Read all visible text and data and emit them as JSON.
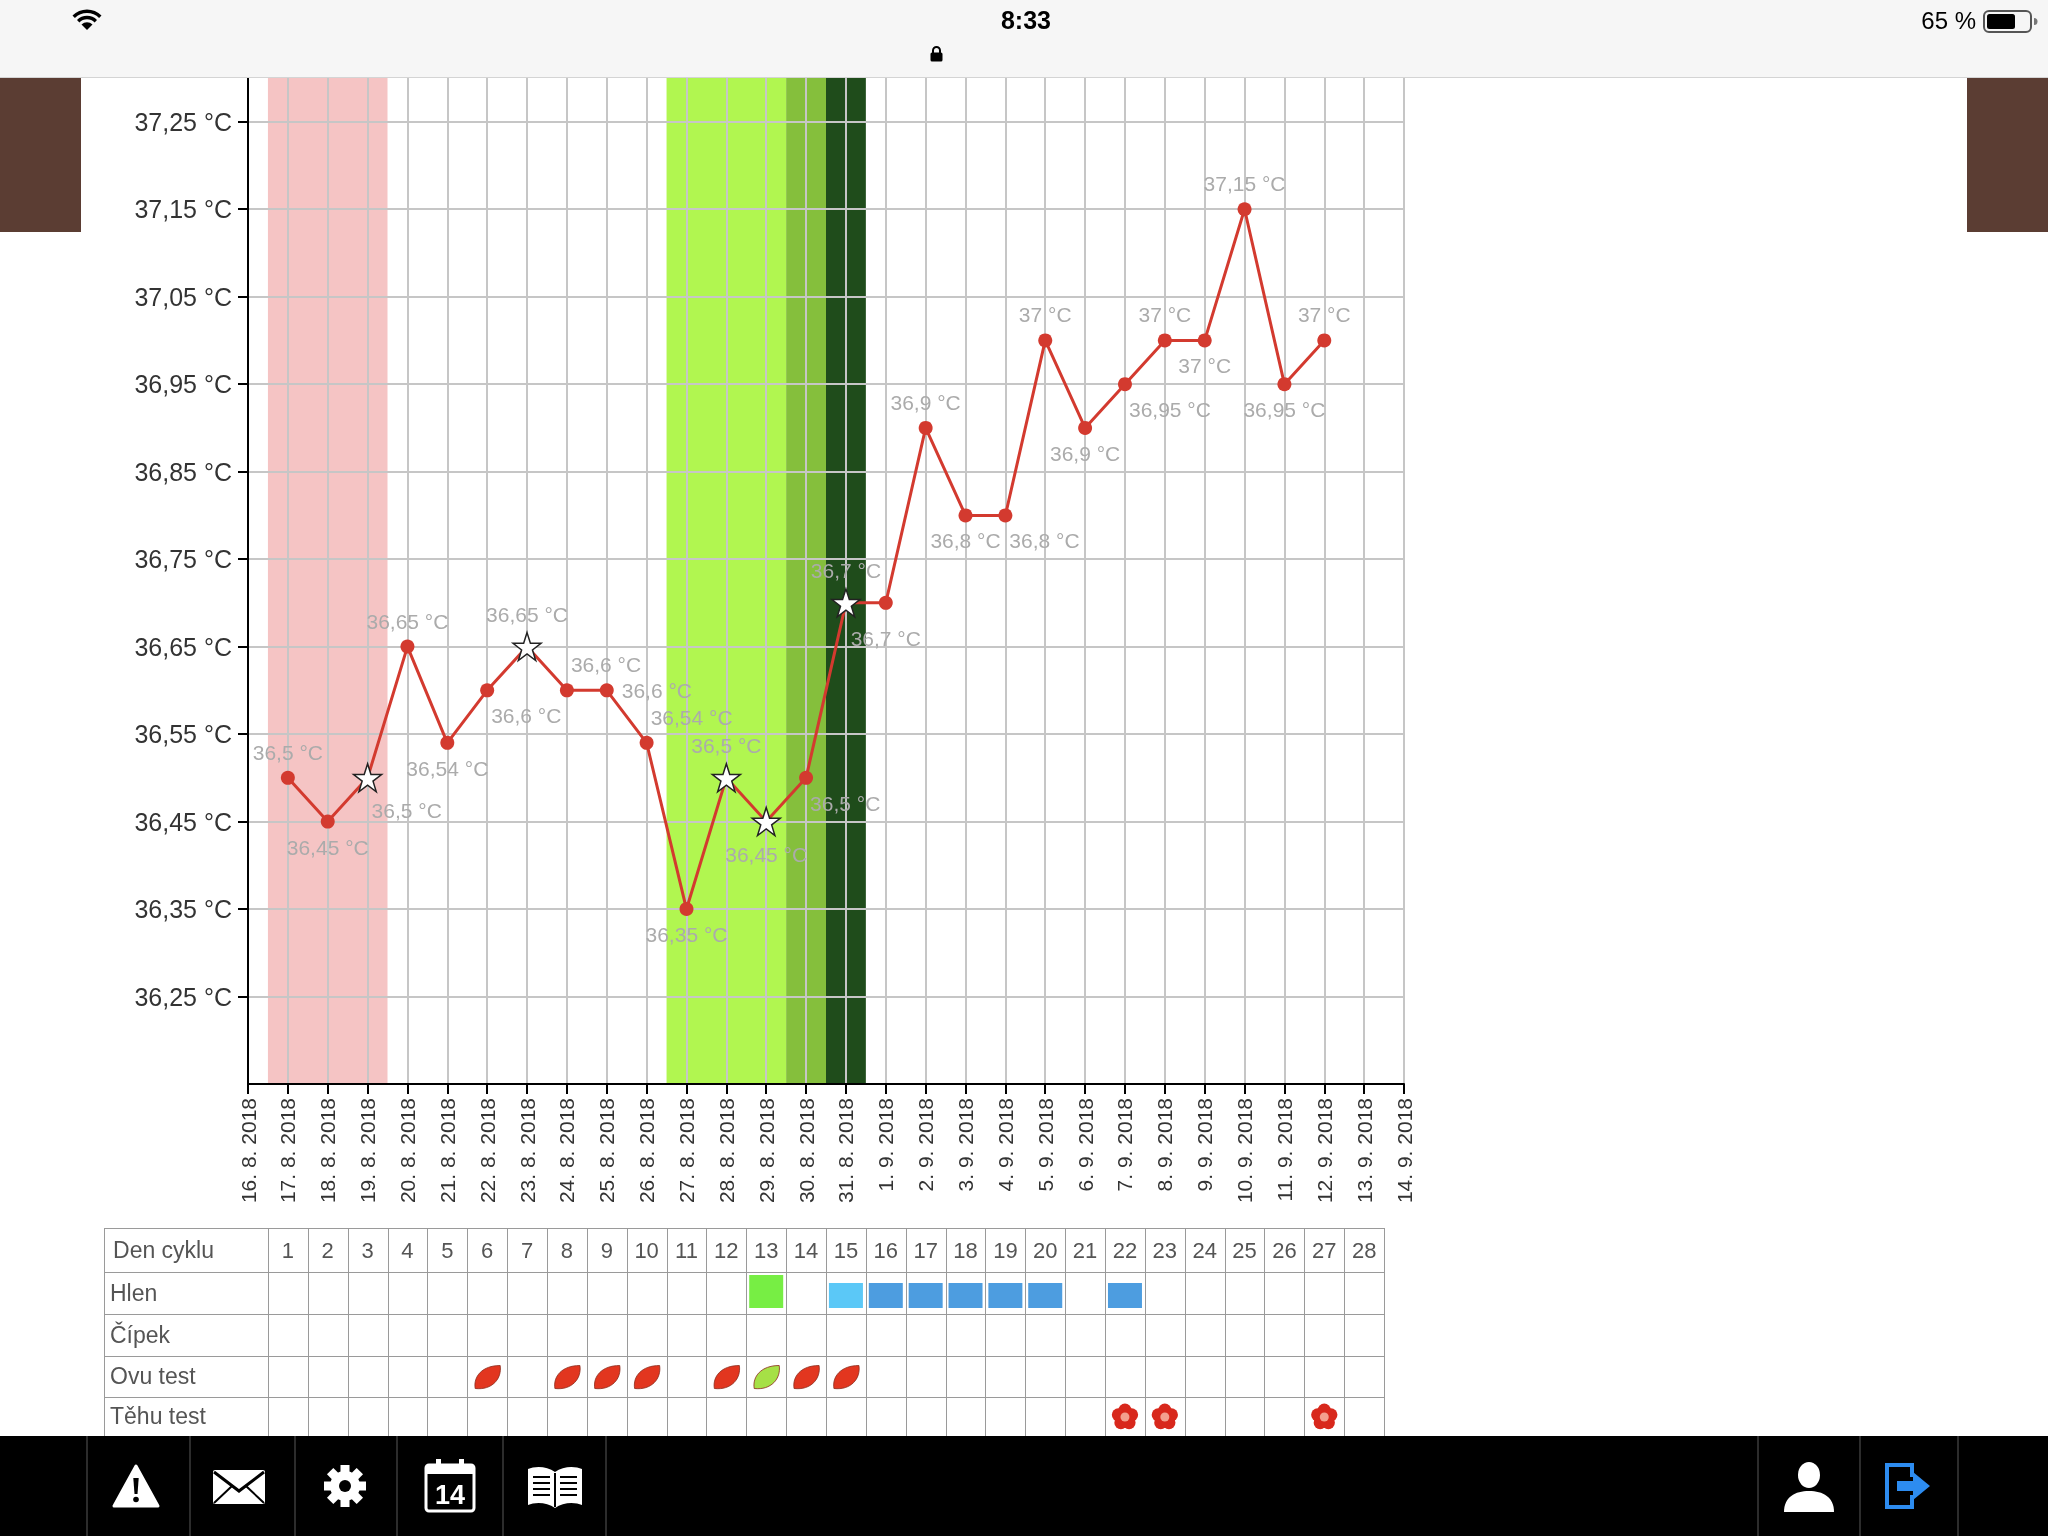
{
  "chart_data": {
    "type": "line",
    "x": [
      "2018-08-17",
      "2018-08-18",
      "2018-08-19",
      "2018-08-20",
      "2018-08-21",
      "2018-08-22",
      "2018-08-23",
      "2018-08-24",
      "2018-08-25",
      "2018-08-26",
      "2018-08-27",
      "2018-08-28",
      "2018-08-29",
      "2018-08-30",
      "2018-08-31",
      "2018-09-01",
      "2018-09-02",
      "2018-09-03",
      "2018-09-04",
      "2018-09-05",
      "2018-09-06",
      "2018-09-07",
      "2018-09-08",
      "2018-09-09",
      "2018-09-10",
      "2018-09-11",
      "2018-09-12"
    ],
    "xlim": [
      "2018-08-16",
      "2018-09-14"
    ],
    "xticks": [
      {
        "value": "2018-08-16",
        "label": "16. 8. 2018"
      },
      {
        "value": "2018-08-17",
        "label": "17. 8. 2018"
      },
      {
        "value": "2018-08-18",
        "label": "18. 8. 2018"
      },
      {
        "value": "2018-08-19",
        "label": "19. 8. 2018"
      },
      {
        "value": "2018-08-20",
        "label": "20. 8. 2018"
      },
      {
        "value": "2018-08-21",
        "label": "21. 8. 2018"
      },
      {
        "value": "2018-08-22",
        "label": "22. 8. 2018"
      },
      {
        "value": "2018-08-23",
        "label": "23. 8. 2018"
      },
      {
        "value": "2018-08-24",
        "label": "24. 8. 2018"
      },
      {
        "value": "2018-08-25",
        "label": "25. 8. 2018"
      },
      {
        "value": "2018-08-26",
        "label": "26. 8. 2018"
      },
      {
        "value": "2018-08-27",
        "label": "27. 8. 2018"
      },
      {
        "value": "2018-08-28",
        "label": "28. 8. 2018"
      },
      {
        "value": "2018-08-29",
        "label": "29. 8. 2018"
      },
      {
        "value": "2018-08-30",
        "label": "30. 8. 2018"
      },
      {
        "value": "2018-08-31",
        "label": "31. 8. 2018"
      },
      {
        "value": "2018-09-01",
        "label": "1. 9. 2018"
      },
      {
        "value": "2018-09-02",
        "label": "2. 9. 2018"
      },
      {
        "value": "2018-09-03",
        "label": "3. 9. 2018"
      },
      {
        "value": "2018-09-04",
        "label": "4. 9. 2018"
      },
      {
        "value": "2018-09-05",
        "label": "5. 9. 2018"
      },
      {
        "value": "2018-09-06",
        "label": "6. 9. 2018"
      },
      {
        "value": "2018-09-07",
        "label": "7. 9. 2018"
      },
      {
        "value": "2018-09-08",
        "label": "8. 9. 2018"
      },
      {
        "value": "2018-09-09",
        "label": "9. 9. 2018"
      },
      {
        "value": "2018-09-10",
        "label": "10. 9. 2018"
      },
      {
        "value": "2018-09-11",
        "label": "11. 9. 2018"
      },
      {
        "value": "2018-09-12",
        "label": "12. 9. 2018"
      },
      {
        "value": "2018-09-13",
        "label": "13. 9. 2018"
      },
      {
        "value": "2018-09-14",
        "label": "14. 9. 2018"
      }
    ],
    "x2lim": [
      "2018-08-16",
      "2018-09-14"
    ],
    "x2ticks": [
      {
        "value": "2018-08-17",
        "label": "1"
      },
      {
        "value": "2018-08-18",
        "label": "2"
      },
      {
        "value": "2018-08-19",
        "label": "3"
      },
      {
        "value": "2018-08-20",
        "label": "4"
      },
      {
        "value": "2018-08-21",
        "label": "5"
      },
      {
        "value": "2018-08-22",
        "label": "6"
      },
      {
        "value": "2018-08-23",
        "label": "7"
      },
      {
        "value": "2018-08-24",
        "label": "8"
      },
      {
        "value": "2018-08-25",
        "label": "9"
      },
      {
        "value": "2018-08-26",
        "label": "10"
      },
      {
        "value": "2018-08-27",
        "label": "11"
      },
      {
        "value": "2018-08-28",
        "label": "12"
      },
      {
        "value": "2018-08-29",
        "label": "13"
      },
      {
        "value": "2018-08-30",
        "label": "14"
      },
      {
        "value": "2018-08-31",
        "label": "15"
      },
      {
        "value": "2018-09-01",
        "label": "16"
      },
      {
        "value": "2018-09-02",
        "label": "17"
      },
      {
        "value": "2018-09-03",
        "label": "18"
      },
      {
        "value": "2018-09-04",
        "label": "19"
      },
      {
        "value": "2018-09-05",
        "label": "20"
      },
      {
        "value": "2018-09-06",
        "label": "21"
      },
      {
        "value": "2018-09-07",
        "label": "22"
      },
      {
        "value": "2018-09-08",
        "label": "23"
      },
      {
        "value": "2018-09-09",
        "label": "24"
      },
      {
        "value": "2018-09-10",
        "label": "25"
      },
      {
        "value": "2018-09-11",
        "label": "26"
      },
      {
        "value": "2018-09-12",
        "label": "27"
      },
      {
        "value": "2018-09-13",
        "label": "28"
      }
    ],
    "x2label": "Den cyklu",
    "ylim": [
      36.15,
      37.3
    ],
    "yticks": [
      {
        "value": 36.25,
        "label": "36,25 °C"
      },
      {
        "value": 36.35,
        "label": "36,35 °C"
      },
      {
        "value": 36.45,
        "label": "36,45 °C"
      },
      {
        "value": 36.55,
        "label": "36,55 °C"
      },
      {
        "value": 36.65,
        "label": "36,65 °C"
      },
      {
        "value": 36.75,
        "label": "36,75 °C"
      },
      {
        "value": 36.85,
        "label": "36,85 °C"
      },
      {
        "value": 36.95,
        "label": "36,95 °C"
      },
      {
        "value": 37.05,
        "label": "37,05 °C"
      },
      {
        "value": 37.15,
        "label": "37,15 °C"
      },
      {
        "value": 37.25,
        "label": "37,25 °C"
      }
    ],
    "grid": true,
    "series": [
      {
        "type": "line",
        "color": "#d33a2f",
        "marker": "circle",
        "values": [
          36.5,
          36.45,
          36.5,
          36.65,
          36.54,
          36.6,
          36.65,
          36.6,
          36.6,
          36.54,
          36.35,
          36.5,
          36.45,
          36.5,
          36.7,
          36.7,
          36.9,
          36.8,
          36.8,
          37,
          36.9,
          36.95,
          37,
          37,
          37.15,
          36.95,
          37
        ],
        "value_labels": [
          "36,5 °C",
          "36,45 °C",
          "36,5 °C",
          "36,65 °C",
          "36,54 °C",
          "36,6 °C",
          "36,65 °C",
          "36,6 °C",
          "36,6 °C",
          "36,54 °C",
          "36,35 °C",
          "36,5 °C",
          "36,45 °C",
          "36,5 °C",
          "36,7 °C",
          "36,7 °C",
          "36,9 °C",
          "36,8 °C",
          "36,8 °C",
          "37 °C",
          "36,9 °C",
          "36,95 °C",
          "37 °C",
          "37 °C",
          "37,15 °C",
          "36,95 °C",
          "37 °C"
        ]
      },
      {
        "type": "scatter",
        "color": "#ffffff",
        "marker": "star",
        "x": [
          "2018-08-19",
          "2018-08-23",
          "2018-08-28",
          "2018-08-29",
          "2018-08-31"
        ],
        "values": [
          36.5,
          36.65,
          36.5,
          36.45,
          36.7
        ]
      }
    ],
    "bands": [
      {
        "axis": "x",
        "from": "2018-08-16T12:00",
        "to": "2018-08-19T12:00",
        "color": "#f5c4c4"
      },
      {
        "axis": "x",
        "from": "2018-08-26T12:00",
        "to": "2018-08-29T12:00",
        "color": "#b1f650"
      },
      {
        "axis": "x",
        "from": "2018-08-29T12:00",
        "to": "2018-08-30T12:00",
        "color": "#85bf3c"
      },
      {
        "axis": "x",
        "from": "2018-08-30T12:00",
        "to": "2018-08-31T12:00",
        "color": "#1f4c1b"
      }
    ],
    "annotations": [
      "Hlen",
      "Čípek",
      "Ovu test",
      "Těhu test",
      "8:33",
      "65 %",
      "14"
    ]
  }
}
